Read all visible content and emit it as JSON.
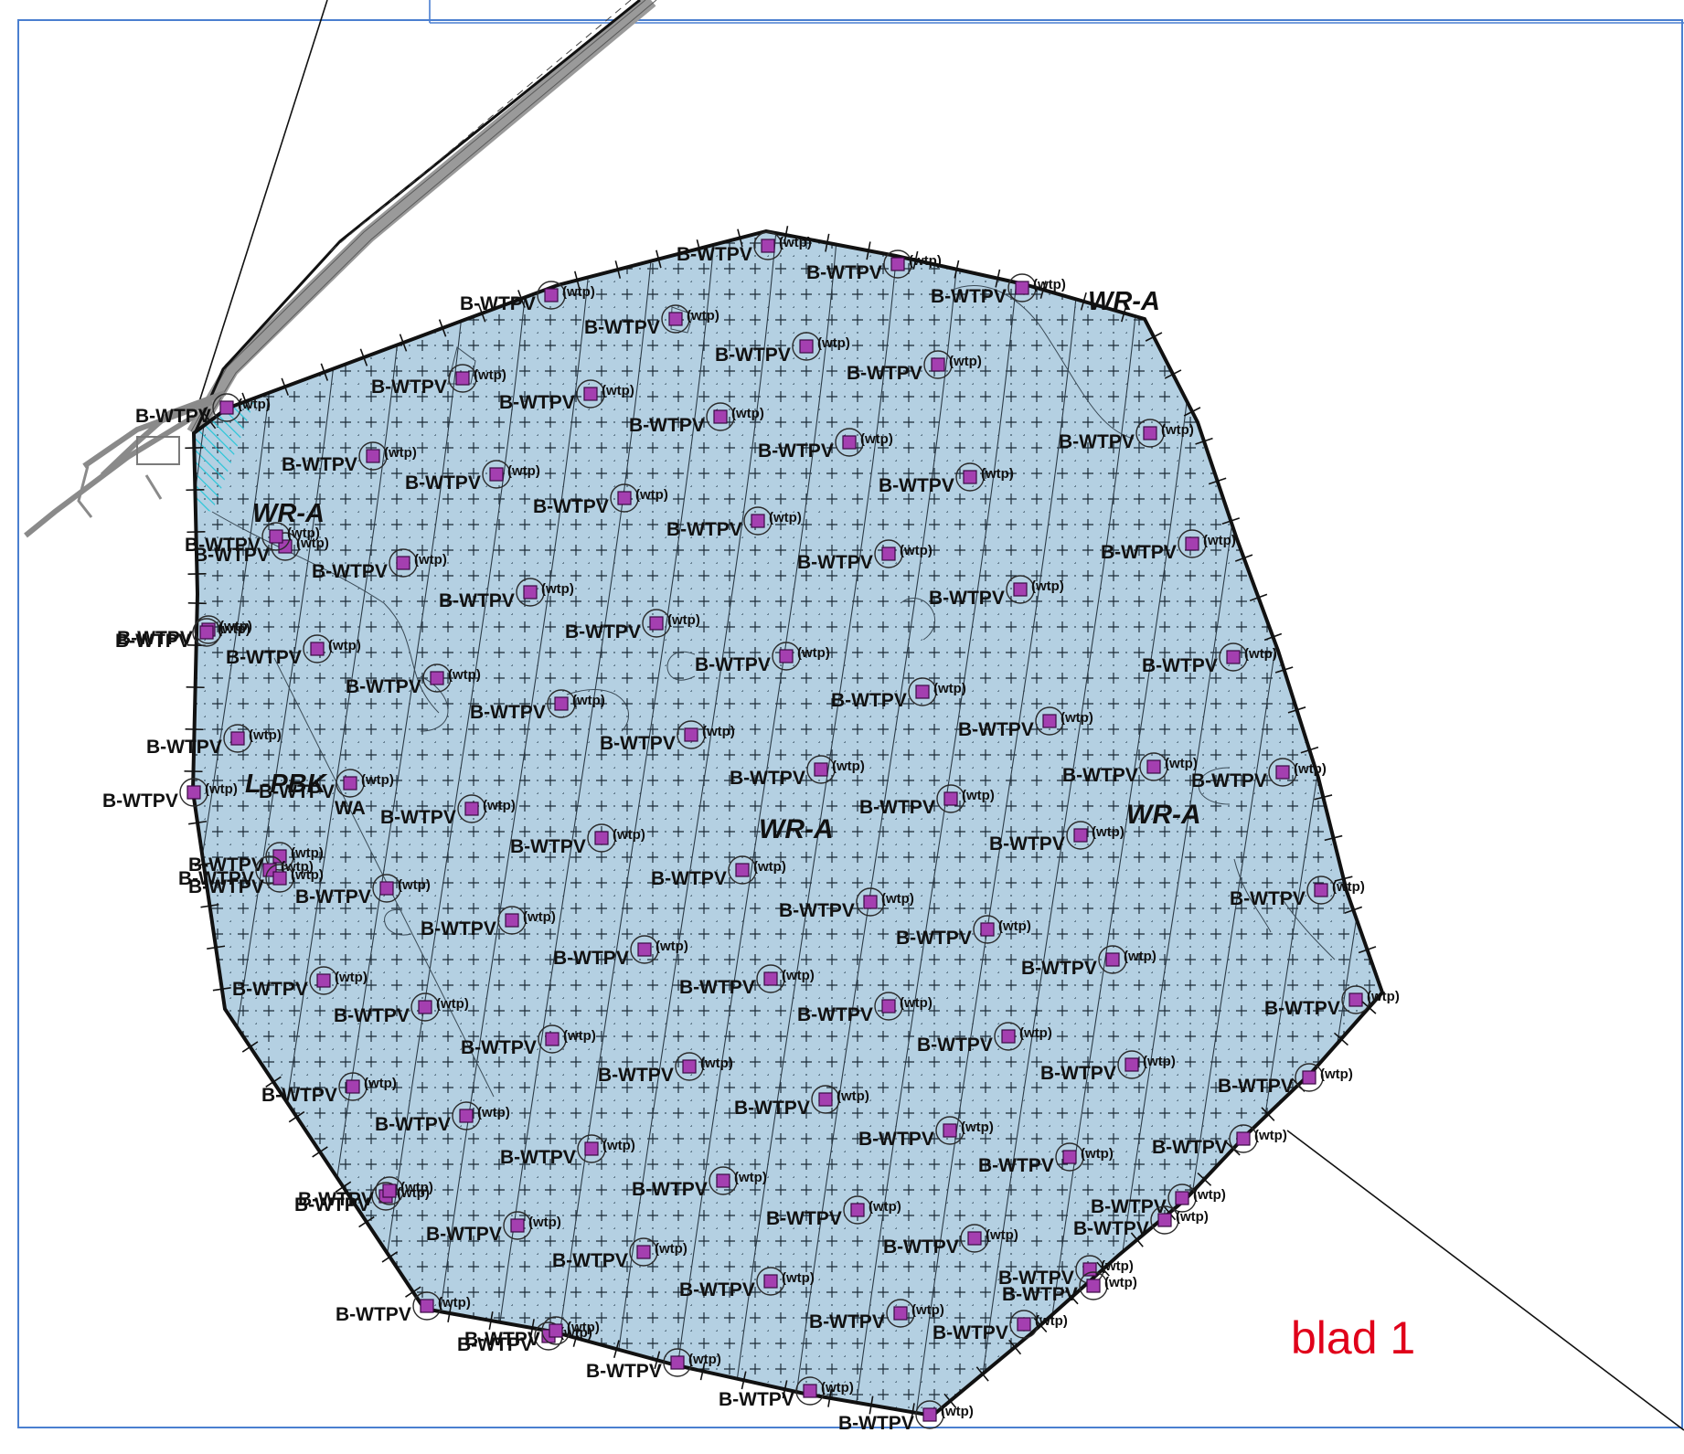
{
  "sheet_label": "blad 1",
  "colors": {
    "area_fill": "#b4d0e2",
    "boundary": "#111111",
    "frame": "#4a7fd0",
    "marker": "#a43fb0",
    "hatch": "#28c6d8",
    "sheet_label": "#e0001a"
  },
  "zones": [
    {
      "code": "WR-A"
    },
    {
      "code": "WR-A"
    },
    {
      "code": "WR-A"
    },
    {
      "code": "WR-A"
    },
    {
      "code": "L-PBK"
    },
    {
      "code": "WA"
    }
  ],
  "wells": [
    {
      "code": "B-WTPV",
      "qualifier": "(wtp)"
    },
    {
      "code": "B-WTPV",
      "qualifier": "(wtp)"
    },
    {
      "code": "B-WTPV",
      "qualifier": "(wtp)"
    },
    {
      "code": "B-WTPV",
      "qualifier": "(wtp)"
    },
    {
      "code": "B-WTPV",
      "qualifier": "(wtp)"
    },
    {
      "code": "B-WTPV",
      "qualifier": "(wtp)"
    },
    {
      "code": "B-WTPV",
      "qualifier": "(wtp)"
    },
    {
      "code": "B-WTPV",
      "qualifier": "(wtp)"
    },
    {
      "code": "B-WTPV",
      "qualifier": "(wtp)"
    },
    {
      "code": "B-WTPV",
      "qualifier": "(wtp)"
    },
    {
      "code": "B-WTPV",
      "qualifier": "(wtp)"
    },
    {
      "code": "B-WTPV",
      "qualifier": "(wtp)"
    },
    {
      "code": "B-WTPV",
      "qualifier": "(wtp)"
    },
    {
      "code": "B-WTPV",
      "qualifier": "(wtp)"
    },
    {
      "code": "B-WTPV",
      "qualifier": "(wtp)"
    },
    {
      "code": "B-WTPV",
      "qualifier": "(wtp)"
    },
    {
      "code": "B-WTPV",
      "qualifier": "(wtp)"
    },
    {
      "code": "B-WTPV",
      "qualifier": "(wtp)"
    },
    {
      "code": "B-WTPV",
      "qualifier": "(wtp)"
    },
    {
      "code": "B-WTPV",
      "qualifier": "(wtp)"
    },
    {
      "code": "B-WTPV",
      "qualifier": "(wtp)"
    },
    {
      "code": "B-WTPV",
      "qualifier": "(wtp)"
    },
    {
      "code": "B-WTPV",
      "qualifier": "(wtp)"
    },
    {
      "code": "B-WTPV",
      "qualifier": "(wtp)"
    },
    {
      "code": "B-WTPV",
      "qualifier": "(wtp)"
    },
    {
      "code": "B-WTPV",
      "qualifier": "(wtp)"
    },
    {
      "code": "B-WTPV",
      "qualifier": "(wtp)"
    },
    {
      "code": "B-WTPV",
      "qualifier": "(wtp)"
    },
    {
      "code": "B-WTPV",
      "qualifier": "(wtp)"
    },
    {
      "code": "B-WTPV",
      "qualifier": "(wtp)"
    },
    {
      "code": "B-WTPV",
      "qualifier": "(wtp)"
    },
    {
      "code": "B-WTPV",
      "qualifier": "(wtp)"
    },
    {
      "code": "B-WTPV",
      "qualifier": "(wtp)"
    },
    {
      "code": "B-WTPV",
      "qualifier": "(wtp)"
    },
    {
      "code": "B-WTPV",
      "qualifier": "(wtp)"
    },
    {
      "code": "B-WTPV",
      "qualifier": "(wtp)"
    },
    {
      "code": "B-WTPV",
      "qualifier": "(wtp)"
    },
    {
      "code": "B-WTPV",
      "qualifier": "(wtp)"
    },
    {
      "code": "B-WTPV",
      "qualifier": "(wtp)"
    },
    {
      "code": "B-WTPV",
      "qualifier": "(wtp)"
    },
    {
      "code": "B-WTPV",
      "qualifier": "(wtp)"
    },
    {
      "code": "B-WTPV",
      "qualifier": "(wtp)"
    },
    {
      "code": "B-WTPV",
      "qualifier": "(wtp)"
    },
    {
      "code": "B-WTPV",
      "qualifier": "(wtp)"
    },
    {
      "code": "B-WTPV",
      "qualifier": "(wtp)"
    },
    {
      "code": "B-WTPV",
      "qualifier": "(wtp)"
    },
    {
      "code": "B-WTPV",
      "qualifier": "(wtp)"
    },
    {
      "code": "B-WTPV",
      "qualifier": "(wtp)"
    },
    {
      "code": "B-WTPV",
      "qualifier": "(wtp)"
    },
    {
      "code": "B-WTPV",
      "qualifier": "(wtp)"
    },
    {
      "code": "B-WTPV",
      "qualifier": "(wtp)"
    },
    {
      "code": "B-WTPV",
      "qualifier": "(wtp)"
    },
    {
      "code": "B-WTPV",
      "qualifier": "(wtp)"
    },
    {
      "code": "B-WTPV",
      "qualifier": "(wtp)"
    },
    {
      "code": "B-WTPV",
      "qualifier": "(wtp)"
    },
    {
      "code": "B-WTPV",
      "qualifier": "(wtp)"
    },
    {
      "code": "B-WTPV",
      "qualifier": "(wtp)"
    },
    {
      "code": "B-WTPV",
      "qualifier": "(wtp)"
    },
    {
      "code": "B-WTPV",
      "qualifier": "(wtp)"
    },
    {
      "code": "B-WTPV",
      "qualifier": "(wtp)"
    },
    {
      "code": "B-WTPV",
      "qualifier": "(wtp)"
    },
    {
      "code": "B-WTPV",
      "qualifier": "(wtp)"
    },
    {
      "code": "B-WTPV",
      "qualifier": "(wtp)"
    },
    {
      "code": "B-WTPV",
      "qualifier": "(wtp)"
    },
    {
      "code": "B-WTPV",
      "qualifier": "(wtp)"
    },
    {
      "code": "B-WTPV",
      "qualifier": "(wtp)"
    },
    {
      "code": "B-WTPV",
      "qualifier": "(wtp)"
    },
    {
      "code": "B-WTPV",
      "qualifier": "(wtp)"
    },
    {
      "code": "B-WTPV",
      "qualifier": "(wtp)"
    },
    {
      "code": "B-WTPV",
      "qualifier": "(wtp)"
    },
    {
      "code": "B-WTPV",
      "qualifier": "(wtp)"
    },
    {
      "code": "B-WTPV",
      "qualifier": "(wtp)"
    },
    {
      "code": "B-WTPV",
      "qualifier": "(wtp)"
    },
    {
      "code": "B-WTPV",
      "qualifier": "(wtp)"
    },
    {
      "code": "B-WTPV",
      "qualifier": "(wtp)"
    },
    {
      "code": "B-WTPV",
      "qualifier": "(wtp)"
    },
    {
      "code": "B-WTPV",
      "qualifier": "(wtp)"
    },
    {
      "code": "B-WTPV",
      "qualifier": "(wtp)"
    },
    {
      "code": "B-WTPV",
      "qualifier": "(wtp)"
    },
    {
      "code": "B-WTPV",
      "qualifier": "(wtp)"
    },
    {
      "code": "B-WTPV",
      "qualifier": "(wtp)"
    },
    {
      "code": "B-WTPV",
      "qualifier": "(wtp)"
    },
    {
      "code": "B-WTPV",
      "qualifier": "(wtp)"
    },
    {
      "code": "B-WTPV",
      "qualifier": "(wtp)"
    },
    {
      "code": "B-WTPV",
      "qualifier": "(wtp)"
    },
    {
      "code": "B-WTPV",
      "qualifier": "(wtp)"
    },
    {
      "code": "B-WTPV",
      "qualifier": "(wtp)"
    },
    {
      "code": "B-WTPV",
      "qualifier": "(wtp)"
    },
    {
      "code": "B-WTPV",
      "qualifier": "(wtp)"
    },
    {
      "code": "B-WTPV",
      "qualifier": "(wtp)"
    },
    {
      "code": "B-WTPV",
      "qualifier": "(wtp)"
    },
    {
      "code": "B-WTPV",
      "qualifier": "(wtp)"
    },
    {
      "code": "B-WTPV",
      "qualifier": "(wtp)"
    },
    {
      "code": "B-WTPV",
      "qualifier": "(wtp)"
    },
    {
      "code": "B-WTPV",
      "qualifier": "(wtp)"
    },
    {
      "code": "B-WTPV",
      "qualifier": "(wtp)"
    },
    {
      "code": "B-WTPV",
      "qualifier": "(wtp)"
    },
    {
      "code": "B-WTPV",
      "qualifier": "(wtp)"
    },
    {
      "code": "B-WTPV",
      "qualifier": "(wtp)"
    },
    {
      "code": "B-WTPV",
      "qualifier": "(wtp)"
    },
    {
      "code": "B-WTPV",
      "qualifier": "(wtp)"
    },
    {
      "code": "B-WTPV",
      "qualifier": "(wtp)"
    },
    {
      "code": "B-WTPV",
      "qualifier": "(wtp)"
    },
    {
      "code": "B-WTPV",
      "qualifier": "(wtp)"
    },
    {
      "code": "B-WTPV",
      "qualifier": "(wtp)"
    },
    {
      "code": "B-WTPV",
      "qualifier": "(wtp)"
    },
    {
      "code": "B-WTPV",
      "qualifier": "(wtp)"
    },
    {
      "code": "B-WTPV",
      "qualifier": "(wtp)"
    },
    {
      "code": "B-WTPV",
      "qualifier": "(wtp)"
    },
    {
      "code": "B-WTPV",
      "qualifier": "(wtp)"
    },
    {
      "code": "B-WTPV",
      "qualifier": "(wtp)"
    },
    {
      "code": "B-WTPV",
      "qualifier": "(wtp)"
    },
    {
      "code": "B-WTPV",
      "qualifier": "(wtp)"
    },
    {
      "code": "B-WTPV",
      "qualifier": "(wtp)"
    },
    {
      "code": "B-WTPV",
      "qualifier": "(wtp)"
    },
    {
      "code": "B-WTPV",
      "qualifier": "(wtp)"
    },
    {
      "code": "B-WTPV",
      "qualifier": "(wtp)"
    },
    {
      "code": "B-WTPV",
      "qualifier": "(wtp)"
    },
    {
      "code": "B-WTPV",
      "qualifier": "(wtp)"
    },
    {
      "code": "B-WTPV",
      "qualifier": "(wtp)"
    },
    {
      "code": "B-WTPV",
      "qualifier": "(wtp)"
    },
    {
      "code": "B-WTPV",
      "qualifier": "(wtp)"
    },
    {
      "code": "B-WTPV",
      "qualifier": "(wtp)"
    },
    {
      "code": "B-WTPV",
      "qualifier": "(wtp)"
    },
    {
      "code": "B-WTPV",
      "qualifier": "(wtp)"
    },
    {
      "code": "B-WTPV",
      "qualifier": "(wtp)"
    },
    {
      "code": "B-WTPV",
      "qualifier": "(wtp)"
    },
    {
      "code": "B-WTPV",
      "qualifier": "(wtp)"
    },
    {
      "code": "B-WTPV",
      "qualifier": "(wtp)"
    },
    {
      "code": "B-WTPV",
      "qualifier": "(wtp)"
    },
    {
      "code": "B-WTPV",
      "qualifier": "(wtp)"
    },
    {
      "code": "B-WTPV",
      "qualifier": "(wtp)"
    },
    {
      "code": "B-WTPV",
      "qualifier": "(wtp)"
    },
    {
      "code": "B-WTPV",
      "qualifier": "(wtp)"
    },
    {
      "code": "B-WTPV",
      "qualifier": "(wtp)"
    },
    {
      "code": "B-WTPV",
      "qualifier": "(wtp)"
    },
    {
      "code": "B-WTPV",
      "qualifier": "(wtp)"
    },
    {
      "code": "B-WTPV",
      "qualifier": "(wtp)"
    },
    {
      "code": "B-WTPV",
      "qualifier": "(wtp)"
    },
    {
      "code": "B-WTPV",
      "qualifier": "(wtp)"
    }
  ]
}
